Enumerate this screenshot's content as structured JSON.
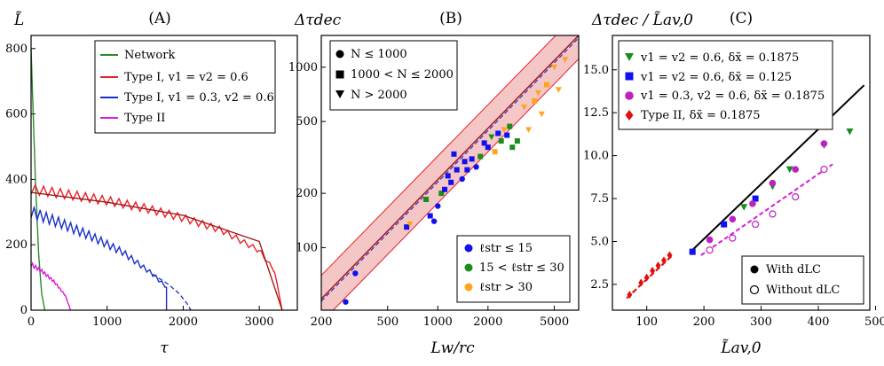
{
  "figure": {
    "panels": [
      "(A)",
      "(B)",
      "(C)"
    ]
  },
  "chart_data": [
    {
      "type": "line",
      "title": "(A)",
      "xlabel": "τ",
      "ylabel": "L̃",
      "xlim": [
        0,
        3500
      ],
      "ylim": [
        0,
        840
      ],
      "xticks": [
        0,
        1000,
        2000,
        3000
      ],
      "yticks": [
        0,
        200,
        400,
        600,
        800
      ],
      "legend": "top-right",
      "series": [
        {
          "name": "Network",
          "color": "#2a8a2a",
          "x": [
            0,
            25,
            60,
            100,
            140,
            180
          ],
          "y": [
            800,
            620,
            380,
            170,
            50,
            0
          ]
        },
        {
          "name": "Type I, v1 = v2 = 0.6",
          "color": "#e8202a",
          "x": [
            0,
            500,
            1000,
            1500,
            2000,
            2500,
            3000,
            3200,
            3300
          ],
          "y": [
            370,
            353,
            335,
            312,
            282,
            245,
            182,
            120,
            0
          ],
          "oscillation": 30,
          "period": 110
        },
        {
          "name": "Type I, v1 = 0.3, v2 = 0.6",
          "color": "#1a2fc8",
          "x": [
            0,
            400,
            800,
            1200,
            1600,
            1780
          ],
          "y": [
            300,
            265,
            225,
            178,
            110,
            70
          ],
          "oscillation": 35,
          "period": 80,
          "extrapolation": {
            "x": [
              1600,
              1800,
              1950,
              2050,
              2100
            ],
            "y": [
              110,
              80,
              50,
              20,
              0
            ]
          }
        },
        {
          "name": "Type II",
          "color": "#d81ad8",
          "x": [
            0,
            150,
            300,
            450,
            520
          ],
          "y": [
            140,
            118,
            88,
            45,
            0
          ],
          "oscillation": 12,
          "period": 40
        }
      ],
      "fit_line": {
        "color": "#a01010",
        "x": [
          0,
          1000,
          2000,
          3000,
          3300
        ],
        "y": [
          360,
          330,
          290,
          210,
          0
        ]
      }
    },
    {
      "type": "scatter",
      "title": "(B)",
      "xlabel": "Lw/rc",
      "ylabel": "Δτdec",
      "xscale": "log",
      "yscale": "log",
      "xlim": [
        200,
        7000
      ],
      "ylim": [
        45,
        1500
      ],
      "xticks": [
        200,
        500,
        1000,
        2000,
        5000
      ],
      "yticks": [
        100,
        200,
        500,
        1000
      ],
      "legends": {
        "markers": [
          "N ≤ 1000",
          "1000 < N ≤ 2000",
          "N > 2000"
        ],
        "colors": [
          "ℓstr ≤ 15",
          "15 < ℓstr ≤ 30",
          "ℓstr > 30"
        ]
      },
      "band_factor": 1.35,
      "fit_line": {
        "x": [
          200,
          7000
        ],
        "y": [
          52,
          1500
        ]
      },
      "points": [
        {
          "x": 280,
          "y": 50,
          "c": "blue",
          "m": "circle"
        },
        {
          "x": 320,
          "y": 72,
          "c": "blue",
          "m": "circle"
        },
        {
          "x": 650,
          "y": 130,
          "c": "blue",
          "m": "square"
        },
        {
          "x": 680,
          "y": 135,
          "c": "orange",
          "m": "tri"
        },
        {
          "x": 850,
          "y": 185,
          "c": "green",
          "m": "square"
        },
        {
          "x": 900,
          "y": 150,
          "c": "blue",
          "m": "square"
        },
        {
          "x": 950,
          "y": 140,
          "c": "blue",
          "m": "circle"
        },
        {
          "x": 1000,
          "y": 170,
          "c": "blue",
          "m": "circle"
        },
        {
          "x": 1050,
          "y": 200,
          "c": "green",
          "m": "square"
        },
        {
          "x": 1100,
          "y": 210,
          "c": "blue",
          "m": "square"
        },
        {
          "x": 1150,
          "y": 250,
          "c": "blue",
          "m": "square"
        },
        {
          "x": 1200,
          "y": 230,
          "c": "blue",
          "m": "square"
        },
        {
          "x": 1250,
          "y": 330,
          "c": "blue",
          "m": "square"
        },
        {
          "x": 1300,
          "y": 270,
          "c": "blue",
          "m": "square"
        },
        {
          "x": 1400,
          "y": 240,
          "c": "blue",
          "m": "circle"
        },
        {
          "x": 1450,
          "y": 300,
          "c": "blue",
          "m": "square"
        },
        {
          "x": 1500,
          "y": 270,
          "c": "blue",
          "m": "square"
        },
        {
          "x": 1600,
          "y": 310,
          "c": "blue",
          "m": "square"
        },
        {
          "x": 1700,
          "y": 280,
          "c": "blue",
          "m": "circle"
        },
        {
          "x": 1800,
          "y": 320,
          "c": "green",
          "m": "square"
        },
        {
          "x": 1900,
          "y": 380,
          "c": "blue",
          "m": "square"
        },
        {
          "x": 2000,
          "y": 360,
          "c": "blue",
          "m": "square"
        },
        {
          "x": 2100,
          "y": 410,
          "c": "green",
          "m": "tri"
        },
        {
          "x": 2200,
          "y": 340,
          "c": "orange",
          "m": "square"
        },
        {
          "x": 2300,
          "y": 430,
          "c": "blue",
          "m": "square"
        },
        {
          "x": 2400,
          "y": 390,
          "c": "green",
          "m": "square"
        },
        {
          "x": 2500,
          "y": 450,
          "c": "orange",
          "m": "tri"
        },
        {
          "x": 2600,
          "y": 420,
          "c": "blue",
          "m": "square"
        },
        {
          "x": 2700,
          "y": 470,
          "c": "green",
          "m": "square"
        },
        {
          "x": 2800,
          "y": 360,
          "c": "green",
          "m": "square"
        },
        {
          "x": 3000,
          "y": 390,
          "c": "green",
          "m": "square"
        },
        {
          "x": 3300,
          "y": 600,
          "c": "orange",
          "m": "tri"
        },
        {
          "x": 3500,
          "y": 450,
          "c": "orange",
          "m": "tri"
        },
        {
          "x": 3800,
          "y": 650,
          "c": "orange",
          "m": "square"
        },
        {
          "x": 4000,
          "y": 720,
          "c": "orange",
          "m": "tri"
        },
        {
          "x": 4200,
          "y": 550,
          "c": "orange",
          "m": "tri"
        },
        {
          "x": 4500,
          "y": 800,
          "c": "orange",
          "m": "square"
        },
        {
          "x": 5000,
          "y": 1000,
          "c": "orange",
          "m": "tri"
        },
        {
          "x": 5300,
          "y": 750,
          "c": "orange",
          "m": "tri"
        },
        {
          "x": 5800,
          "y": 1100,
          "c": "orange",
          "m": "tri"
        }
      ]
    },
    {
      "type": "scatter",
      "title": "(C)",
      "xlabel": "L̃av,0",
      "ylabel": "Δτdec / L̃av,0",
      "xlim": [
        40,
        490
      ],
      "ylim": [
        1.0,
        17.0
      ],
      "xticks": [
        100,
        200,
        300,
        400,
        500
      ],
      "yticks": [
        2.5,
        5.0,
        7.5,
        10.0,
        12.5,
        15.0
      ],
      "legends": {
        "series": [
          "v1 = v2 = 0.6, δx̃ = 0.1875",
          "v1 = v2 = 0.6, δx̃ = 0.125",
          "v1 = 0.3, v2 = 0.6, δx̃ = 0.1875",
          "Type II, δx̃ = 0.1875"
        ],
        "fill": [
          "With dLC",
          "Without dLC"
        ]
      },
      "fit_with": {
        "x": [
          175,
          480
        ],
        "y": [
          4.35,
          14.1
        ]
      },
      "fit_without": {
        "x": [
          195,
          425
        ],
        "y": [
          4.2,
          9.5
        ]
      },
      "fit_typeII": {
        "x": [
          65,
          145
        ],
        "y": [
          1.7,
          4.2
        ]
      },
      "points": [
        {
          "x": 180,
          "y": 4.4,
          "s": "blue"
        },
        {
          "x": 235,
          "y": 6.0,
          "s": "blue"
        },
        {
          "x": 290,
          "y": 7.5,
          "s": "blue"
        },
        {
          "x": 270,
          "y": 7.0,
          "s": "green"
        },
        {
          "x": 320,
          "y": 8.2,
          "s": "green"
        },
        {
          "x": 350,
          "y": 9.2,
          "s": "green"
        },
        {
          "x": 410,
          "y": 10.6,
          "s": "green"
        },
        {
          "x": 455,
          "y": 11.4,
          "s": "green"
        },
        {
          "x": 210,
          "y": 5.1,
          "s": "magenta"
        },
        {
          "x": 250,
          "y": 6.3,
          "s": "magenta"
        },
        {
          "x": 285,
          "y": 7.2,
          "s": "magenta"
        },
        {
          "x": 320,
          "y": 8.4,
          "s": "magenta"
        },
        {
          "x": 360,
          "y": 9.2,
          "s": "magenta"
        },
        {
          "x": 410,
          "y": 10.7,
          "s": "magenta"
        },
        {
          "x": 210,
          "y": 4.5,
          "s": "open"
        },
        {
          "x": 250,
          "y": 5.2,
          "s": "open"
        },
        {
          "x": 290,
          "y": 6.0,
          "s": "open"
        },
        {
          "x": 320,
          "y": 6.6,
          "s": "open"
        },
        {
          "x": 360,
          "y": 7.6,
          "s": "open"
        },
        {
          "x": 410,
          "y": 9.2,
          "s": "open"
        },
        {
          "x": 70,
          "y": 1.9,
          "s": "red"
        },
        {
          "x": 90,
          "y": 2.6,
          "s": "red"
        },
        {
          "x": 100,
          "y": 2.9,
          "s": "red"
        },
        {
          "x": 110,
          "y": 3.3,
          "s": "red"
        },
        {
          "x": 120,
          "y": 3.6,
          "s": "red"
        },
        {
          "x": 130,
          "y": 3.9,
          "s": "red"
        },
        {
          "x": 140,
          "y": 4.2,
          "s": "red"
        }
      ]
    }
  ],
  "colors": {
    "green": "#2a8a2a",
    "red": "#e8202a",
    "blue": "#1a2fc8",
    "magenta": "#d81ad8",
    "orange": "#ffa51a",
    "darkred": "#a01010",
    "band": "#f5c6c6",
    "black": "#000000",
    "scatter_green": "#1c8c1c",
    "scatter_blue": "#1010f0",
    "scatter_magenta": "#c020c0",
    "scatter_red": "#e01010"
  }
}
